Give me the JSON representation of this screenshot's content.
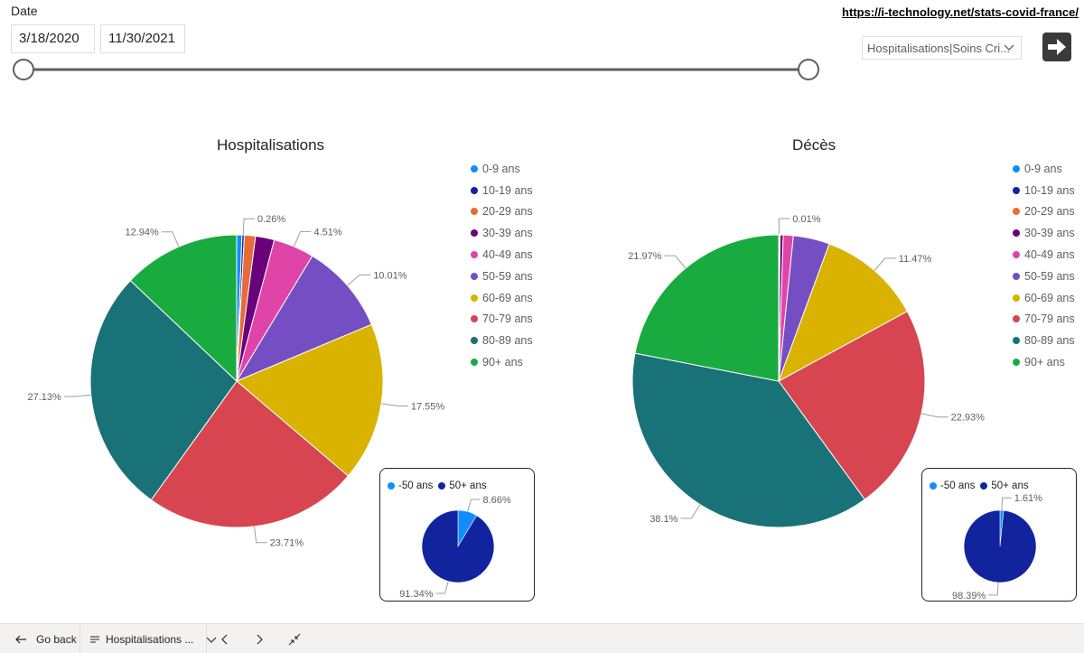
{
  "filters": {
    "date_label": "Date",
    "start_date": "3/18/2020",
    "end_date": "11/30/2021",
    "dropdown_value": "Hospitalisations|Soins Cri..."
  },
  "header": {
    "site_link": "https://i-technology.net/stats-covid-france/"
  },
  "legend_labels": [
    "0-9 ans",
    "10-19 ans",
    "20-29 ans",
    "30-39 ans",
    "40-49 ans",
    "50-59 ans",
    "60-69 ans",
    "70-79 ans",
    "80-89 ans",
    "90+ ans"
  ],
  "colors": {
    "0-9 ans": "#118dff",
    "10-19 ans": "#12239e",
    "20-29 ans": "#e66c37",
    "30-39 ans": "#6b007b",
    "40-49 ans": "#e044a7",
    "50-59 ans": "#744ec2",
    "60-69 ans": "#d9b300",
    "70-79 ans": "#d64550",
    "80-89 ans": "#197278",
    "90+ ans": "#1aab40",
    "-50 ans": "#118dff",
    "50+ ans": "#12239e"
  },
  "chart_data": [
    {
      "type": "pie",
      "title": "Hospitalisations",
      "categories": [
        "0-9 ans",
        "10-19 ans",
        "20-29 ans",
        "30-39 ans",
        "40-49 ans",
        "50-59 ans",
        "60-69 ans",
        "70-79 ans",
        "80-89 ans",
        "90+ ans"
      ],
      "values": [
        0.58,
        0.26,
        1.23,
        2.08,
        4.51,
        10.01,
        17.55,
        23.71,
        27.13,
        12.94
      ],
      "labels": [
        "",
        "0.26%",
        "",
        "",
        "4.51%",
        "10.01%",
        "17.55%",
        "23.71%",
        "27.13%",
        "12.94%"
      ],
      "legend": "right"
    },
    {
      "type": "pie",
      "title": "Décès",
      "categories": [
        "0-9 ans",
        "10-19 ans",
        "20-29 ans",
        "30-39 ans",
        "40-49 ans",
        "50-59 ans",
        "60-69 ans",
        "70-79 ans",
        "80-89 ans",
        "90+ ans"
      ],
      "values": [
        0.02,
        0.01,
        0.12,
        0.35,
        1.11,
        4.02,
        11.47,
        22.93,
        38.1,
        21.97
      ],
      "labels": [
        "",
        "0.01%",
        "",
        "",
        "",
        "",
        "11.47%",
        "22.93%",
        "38.1%",
        "21.97%"
      ],
      "legend": "right"
    },
    {
      "type": "pie",
      "title": "",
      "categories": [
        "-50 ans",
        "50+ ans"
      ],
      "values": [
        8.66,
        91.34
      ],
      "labels": [
        "8.66%",
        "91.34%"
      ],
      "legend": "top-left"
    },
    {
      "type": "pie",
      "title": "",
      "categories": [
        "-50 ans",
        "50+ ans"
      ],
      "values": [
        1.61,
        98.39
      ],
      "labels": [
        "1.61%",
        "98.39%"
      ],
      "legend": "top-left"
    }
  ],
  "bottom_bar": {
    "go_back": "Go back",
    "page_name": "Hospitalisations ..."
  }
}
